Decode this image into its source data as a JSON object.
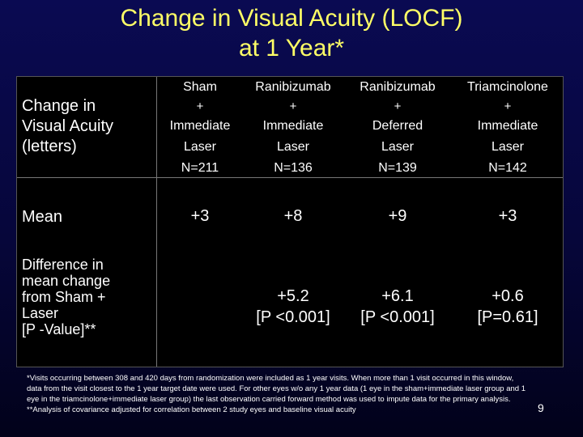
{
  "title": {
    "line1": "Change in Visual Acuity (LOCF)",
    "line2": "at 1 Year*"
  },
  "table": {
    "row_header": {
      "line1": "Change in",
      "line2": "Visual Acuity",
      "line3": "(letters)"
    },
    "columns": [
      {
        "name": "Sham",
        "plus": "+",
        "timing": "Immediate",
        "treatment": "Laser",
        "n": "N=211",
        "mean": "+3",
        "diff": "",
        "pvalue": ""
      },
      {
        "name": "Ranibizumab",
        "plus": "+",
        "timing": "Immediate",
        "treatment": "Laser",
        "n": "N=136",
        "mean": "+8",
        "diff": "+5.2",
        "pvalue": "[P <0.001]"
      },
      {
        "name": "Ranibizumab",
        "plus": "+",
        "timing": "Deferred",
        "treatment": "Laser",
        "n": "N=139",
        "mean": "+9",
        "diff": "+6.1",
        "pvalue": "[P <0.001]"
      },
      {
        "name": "Triamcinolone",
        "plus": "+",
        "timing": "Immediate",
        "treatment": "Laser",
        "n": "N=142",
        "mean": "+3",
        "diff": "+0.6",
        "pvalue": "[P=0.61]"
      }
    ],
    "mean_label": "Mean",
    "diff_label": {
      "line1": "Difference in",
      "line2": "mean change",
      "line3": "from Sham +",
      "line4": "Laser",
      "line5": "[P -Value]**"
    }
  },
  "footnotes": {
    "note1": "*Visits occurring between 308 and 420 days from randomization were included as 1 year visits. When more than 1 visit occurred in this window, data from the visit closest to the 1 year target date were used. For other eyes w/o any 1 year data (1 eye in the sham+immediate laser group and 1 eye in the triamcinolone+immediate laser group) the last observation carried forward method was used to impute data for the primary analysis.",
    "note2": "**Analysis of covariance adjusted for correlation between 2 study eyes and baseline visual acuity"
  },
  "page_number": "9",
  "colors": {
    "title": "#ffff66",
    "text": "#ffffff",
    "table_background": "#000000",
    "slide_background": "#0a0a52"
  }
}
